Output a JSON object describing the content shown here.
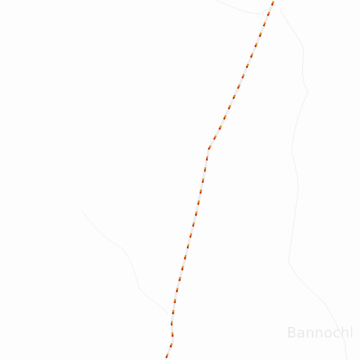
{
  "map": {
    "place_label": "Bannochl"
  },
  "colors": {
    "background": "#fdfdfd",
    "boundary_line": "#f1f1f1",
    "road_casing": "#ececec",
    "road_dash_orange": "#e08a00",
    "road_dash_red": "#c81e00",
    "label_text": "#e9e9e9"
  }
}
